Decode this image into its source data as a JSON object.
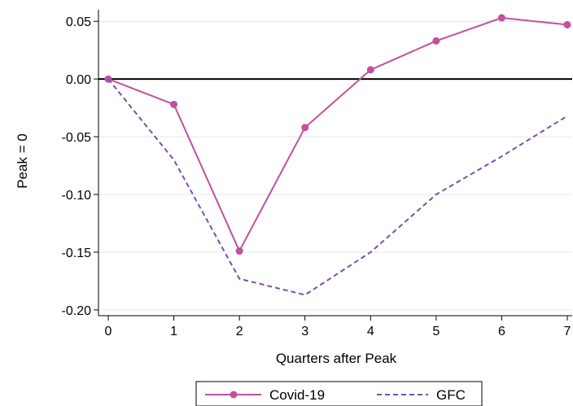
{
  "chart_data": {
    "type": "line",
    "title": "",
    "xlabel": "Quarters after Peak",
    "ylabel": "Peak = 0",
    "x": [
      0,
      1,
      2,
      3,
      4,
      5,
      6,
      7
    ],
    "xlim": [
      0,
      7
    ],
    "ylim": [
      -0.205,
      0.06
    ],
    "xticks": [
      "0",
      "1",
      "2",
      "3",
      "4",
      "5",
      "6",
      "7"
    ],
    "yticks": [
      {
        "value": 0.05,
        "label": "0.05"
      },
      {
        "value": 0.0,
        "label": "0.00"
      },
      {
        "value": -0.05,
        "label": "-0.05"
      },
      {
        "value": -0.1,
        "label": "-0.10"
      },
      {
        "value": -0.15,
        "label": "-0.15"
      },
      {
        "value": -0.2,
        "label": "-0.20"
      }
    ],
    "grid": true,
    "reference_line": 0,
    "legend_position": "bottom",
    "series": [
      {
        "name": "Covid-19",
        "style": "solid-markers",
        "color": "#C2509A",
        "values": [
          0.0,
          -0.022,
          -0.149,
          -0.042,
          0.008,
          0.033,
          0.053,
          0.047
        ]
      },
      {
        "name": "GFC",
        "style": "dashed",
        "color": "#7B4FA8",
        "values": [
          0.0,
          -0.07,
          -0.173,
          -0.187,
          -0.15,
          -0.1,
          -0.067,
          -0.032
        ]
      }
    ]
  }
}
